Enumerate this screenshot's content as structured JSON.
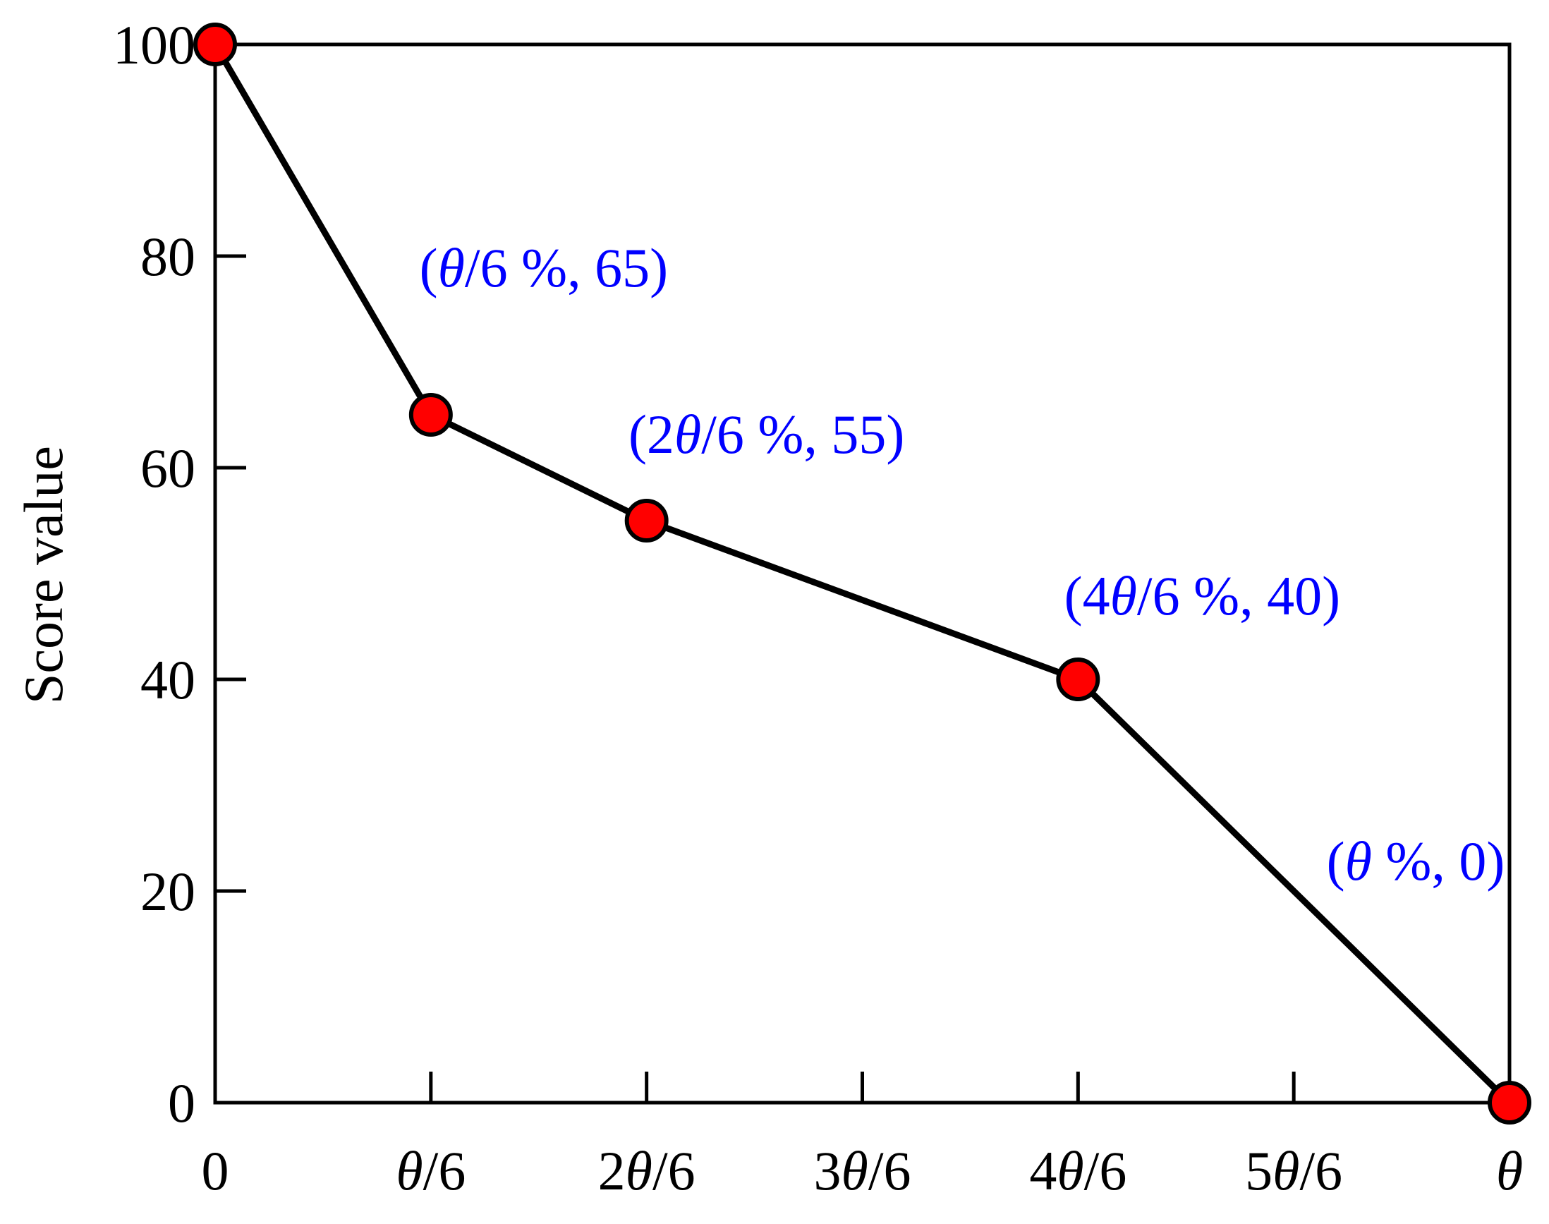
{
  "chart_data": {
    "type": "line",
    "title": "",
    "xlabel": "",
    "ylabel": "Score value",
    "ylim": [
      0,
      100
    ],
    "yticks": [
      0,
      20,
      40,
      60,
      80,
      100
    ],
    "xlim": [
      0,
      6
    ],
    "xticks": [
      {
        "value": 0,
        "parts": [
          {
            "t": "0",
            "i": false
          }
        ]
      },
      {
        "value": 1,
        "parts": [
          {
            "t": "θ",
            "i": true
          },
          {
            "t": "/6",
            "i": false
          }
        ]
      },
      {
        "value": 2,
        "parts": [
          {
            "t": "2",
            "i": false
          },
          {
            "t": "θ",
            "i": true
          },
          {
            "t": "/6",
            "i": false
          }
        ]
      },
      {
        "value": 3,
        "parts": [
          {
            "t": "3",
            "i": false
          },
          {
            "t": "θ",
            "i": true
          },
          {
            "t": "/6",
            "i": false
          }
        ]
      },
      {
        "value": 4,
        "parts": [
          {
            "t": "4",
            "i": false
          },
          {
            "t": "θ",
            "i": true
          },
          {
            "t": "/6",
            "i": false
          }
        ]
      },
      {
        "value": 5,
        "parts": [
          {
            "t": "5",
            "i": false
          },
          {
            "t": "θ",
            "i": true
          },
          {
            "t": "/6",
            "i": false
          }
        ]
      },
      {
        "value": 6,
        "parts": [
          {
            "t": "θ",
            "i": true
          }
        ]
      }
    ],
    "x_unit_note": "x axis in units of θ/6",
    "series": [
      {
        "x": [
          0,
          1,
          2,
          4,
          6
        ],
        "y": [
          100,
          65,
          55,
          40,
          0
        ],
        "line_color": "#000000",
        "marker_color": "#ff0000",
        "marker_edge_color": "#000000"
      }
    ],
    "annotations": [
      {
        "x": 1,
        "y": 65,
        "parts": [
          {
            "t": "(",
            "i": false
          },
          {
            "t": "θ",
            "i": true
          },
          {
            "t": "/6 %, 65)",
            "i": false
          }
        ],
        "color": "#0000ff"
      },
      {
        "x": 2,
        "y": 55,
        "parts": [
          {
            "t": "(2",
            "i": false
          },
          {
            "t": "θ",
            "i": true
          },
          {
            "t": "/6 %, 55)",
            "i": false
          }
        ],
        "color": "#0000ff"
      },
      {
        "x": 4,
        "y": 40,
        "parts": [
          {
            "t": "(4",
            "i": false
          },
          {
            "t": "θ",
            "i": true
          },
          {
            "t": "/6 %, 40)",
            "i": false
          }
        ],
        "color": "#0000ff"
      },
      {
        "x": 6,
        "y": 0,
        "parts": [
          {
            "t": "(",
            "i": false
          },
          {
            "t": "θ",
            "i": true
          },
          {
            "t": " %, 0)",
            "i": false
          }
        ],
        "color": "#0000ff"
      }
    ],
    "grid": false,
    "legend": "none"
  }
}
